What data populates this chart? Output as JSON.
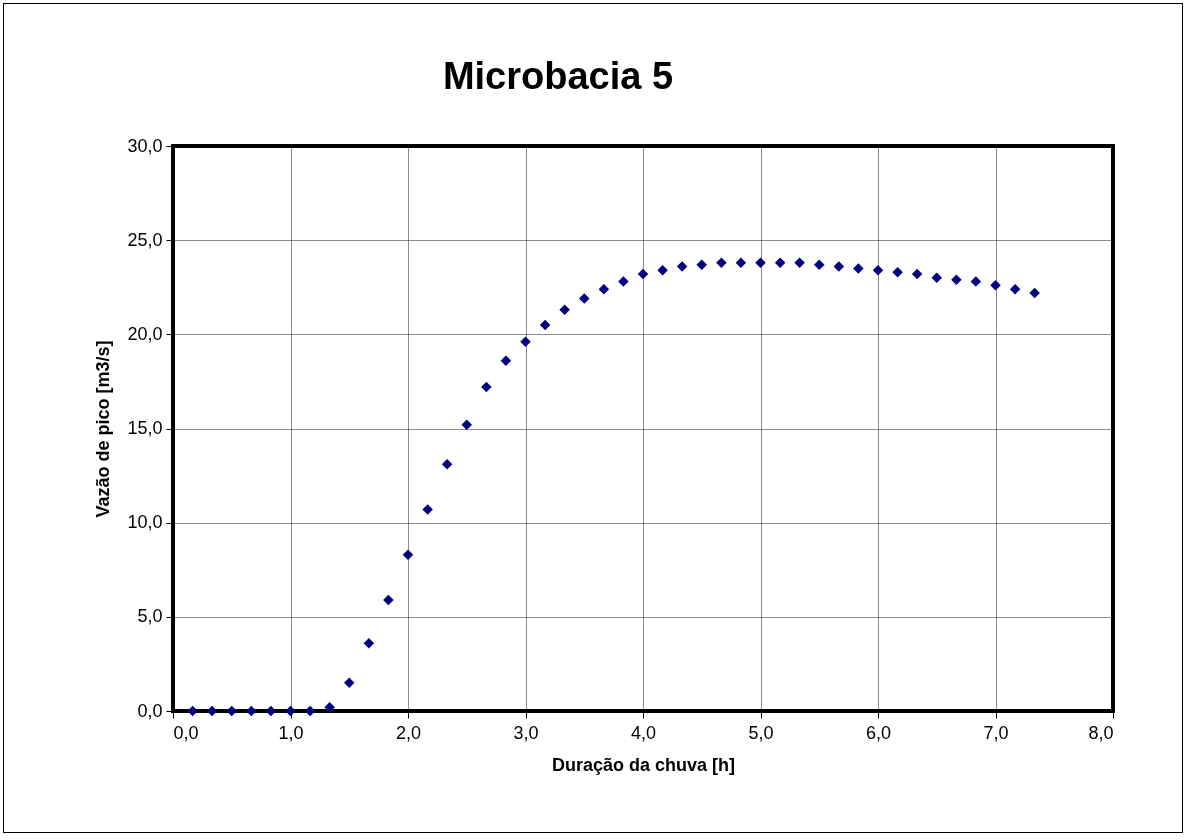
{
  "chart_data": {
    "type": "scatter",
    "title": "Microbacia 5",
    "xlabel": "Duração da chuva [h]",
    "ylabel": "Vazão de pico [m3/s]",
    "x": [
      0.167,
      0.333,
      0.5,
      0.667,
      0.833,
      1.0,
      1.167,
      1.333,
      1.5,
      1.667,
      1.833,
      2.0,
      2.167,
      2.333,
      2.5,
      2.667,
      2.833,
      3.0,
      3.167,
      3.333,
      3.5,
      3.667,
      3.833,
      4.0,
      4.167,
      4.333,
      4.5,
      4.667,
      4.833,
      5.0,
      5.167,
      5.333,
      5.5,
      5.667,
      5.833,
      6.0,
      6.167,
      6.333,
      6.5,
      6.667,
      6.833,
      7.0,
      7.167,
      7.333
    ],
    "series": [
      {
        "color": "#000080",
        "values": [
          0,
          0,
          0,
          0,
          0,
          0,
          0,
          0.2,
          1.5,
          3.6,
          5.9,
          8.3,
          10.7,
          13.1,
          15.2,
          17.2,
          18.6,
          19.6,
          20.5,
          21.3,
          21.9,
          22.4,
          22.8,
          23.2,
          23.4,
          23.6,
          23.7,
          23.8,
          23.8,
          23.8,
          23.8,
          23.8,
          23.7,
          23.6,
          23.5,
          23.4,
          23.3,
          23.2,
          23.0,
          22.9,
          22.8,
          22.6,
          22.4,
          22.2
        ]
      }
    ],
    "xlim": [
      0,
      8
    ],
    "xticks": [
      {
        "value": 0,
        "label": "0,0"
      },
      {
        "value": 1,
        "label": "1,0"
      },
      {
        "value": 2,
        "label": "2,0"
      },
      {
        "value": 3,
        "label": "3,0"
      },
      {
        "value": 4,
        "label": "4,0"
      },
      {
        "value": 5,
        "label": "5,0"
      },
      {
        "value": 6,
        "label": "6,0"
      },
      {
        "value": 7,
        "label": "7,0"
      },
      {
        "value": 8,
        "label": "8,0"
      }
    ],
    "ylim": [
      0,
      30
    ],
    "yticks": [
      {
        "value": 0,
        "label": "0,0"
      },
      {
        "value": 5,
        "label": "5,0"
      },
      {
        "value": 10,
        "label": "10,0"
      },
      {
        "value": 15,
        "label": "15,0"
      },
      {
        "value": 20,
        "label": "20,0"
      },
      {
        "value": 25,
        "label": "25,0"
      },
      {
        "value": 30,
        "label": "30,0"
      }
    ],
    "grid": true,
    "marker": "diamond"
  }
}
